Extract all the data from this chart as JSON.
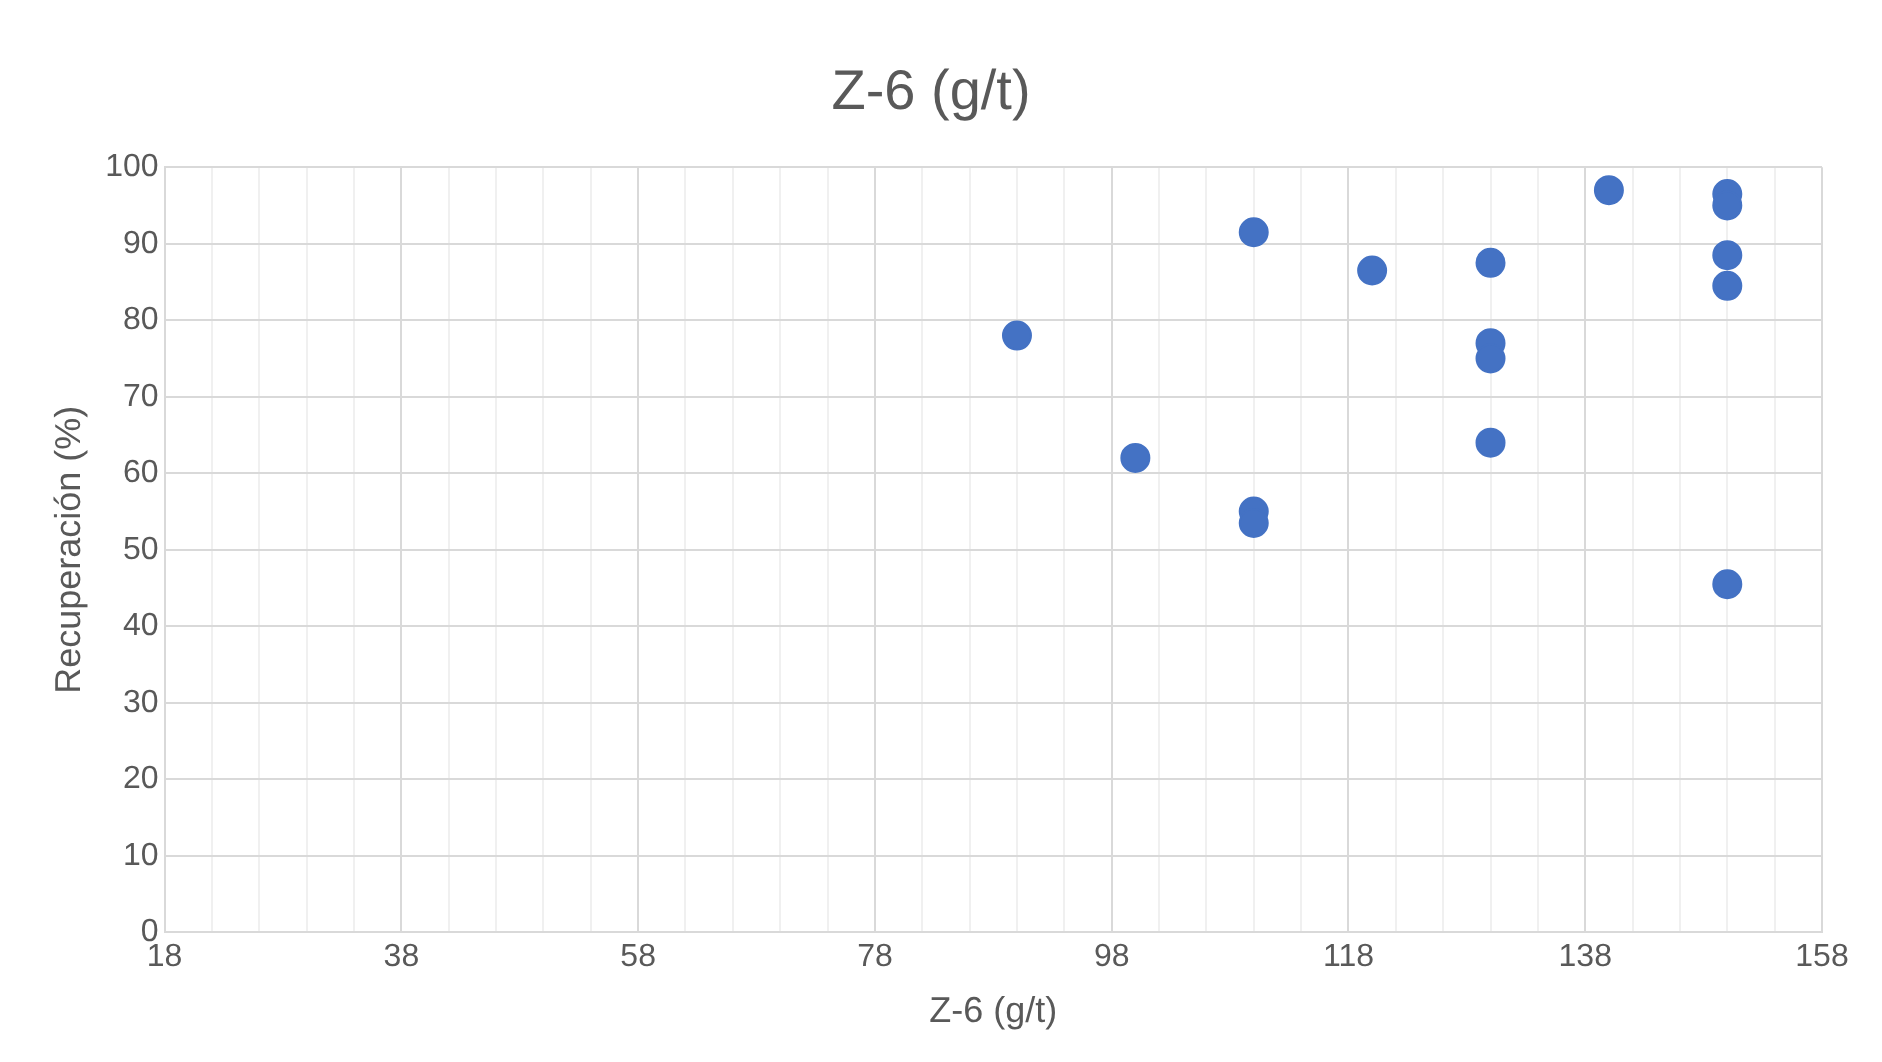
{
  "chart_data": {
    "type": "scatter",
    "title": "Z-6 (g/t)",
    "xlabel": "Z-6 (g/t)",
    "ylabel": "Recuperación (%)",
    "x": [
      90,
      100,
      110,
      110,
      110,
      120,
      130,
      130,
      130,
      130,
      140,
      150,
      150,
      150,
      150,
      150
    ],
    "series": [
      {
        "color": "#4472c4",
        "values": [
          78,
          62,
          91.5,
          55,
          53.5,
          86.5,
          87.5,
          77,
          75,
          64,
          97,
          96.5,
          95,
          88.5,
          84.5,
          45.5
        ]
      }
    ],
    "xlim": [
      18,
      158
    ],
    "xticks": [
      18,
      {
        "value": 22,
        "label": null
      },
      {
        "value": 26,
        "label": null
      },
      {
        "value": 30,
        "label": null
      },
      {
        "value": 34,
        "label": null
      },
      38,
      {
        "value": 42,
        "label": null
      },
      {
        "value": 46,
        "label": null
      },
      {
        "value": 50,
        "label": null
      },
      {
        "value": 54,
        "label": null
      },
      58,
      {
        "value": 62,
        "label": null
      },
      {
        "value": 66,
        "label": null
      },
      {
        "value": 70,
        "label": null
      },
      {
        "value": 74,
        "label": null
      },
      78,
      {
        "value": 82,
        "label": null
      },
      {
        "value": 86,
        "label": null
      },
      {
        "value": 90,
        "label": null
      },
      {
        "value": 94,
        "label": null
      },
      98,
      {
        "value": 102,
        "label": null
      },
      {
        "value": 106,
        "label": null
      },
      {
        "value": 110,
        "label": null
      },
      {
        "value": 114,
        "label": null
      },
      118,
      {
        "value": 122,
        "label": null
      },
      {
        "value": 126,
        "label": null
      },
      {
        "value": 130,
        "label": null
      },
      {
        "value": 134,
        "label": null
      },
      138,
      {
        "value": 142,
        "label": null
      },
      {
        "value": 146,
        "label": null
      },
      {
        "value": 150,
        "label": null
      },
      {
        "value": 154,
        "label": null
      },
      158
    ],
    "ylim": [
      0,
      100
    ],
    "yticks": [
      0,
      10,
      20,
      30,
      40,
      50,
      60,
      70,
      80,
      90,
      100
    ],
    "grid": true,
    "legend": false,
    "marker": "circle"
  }
}
